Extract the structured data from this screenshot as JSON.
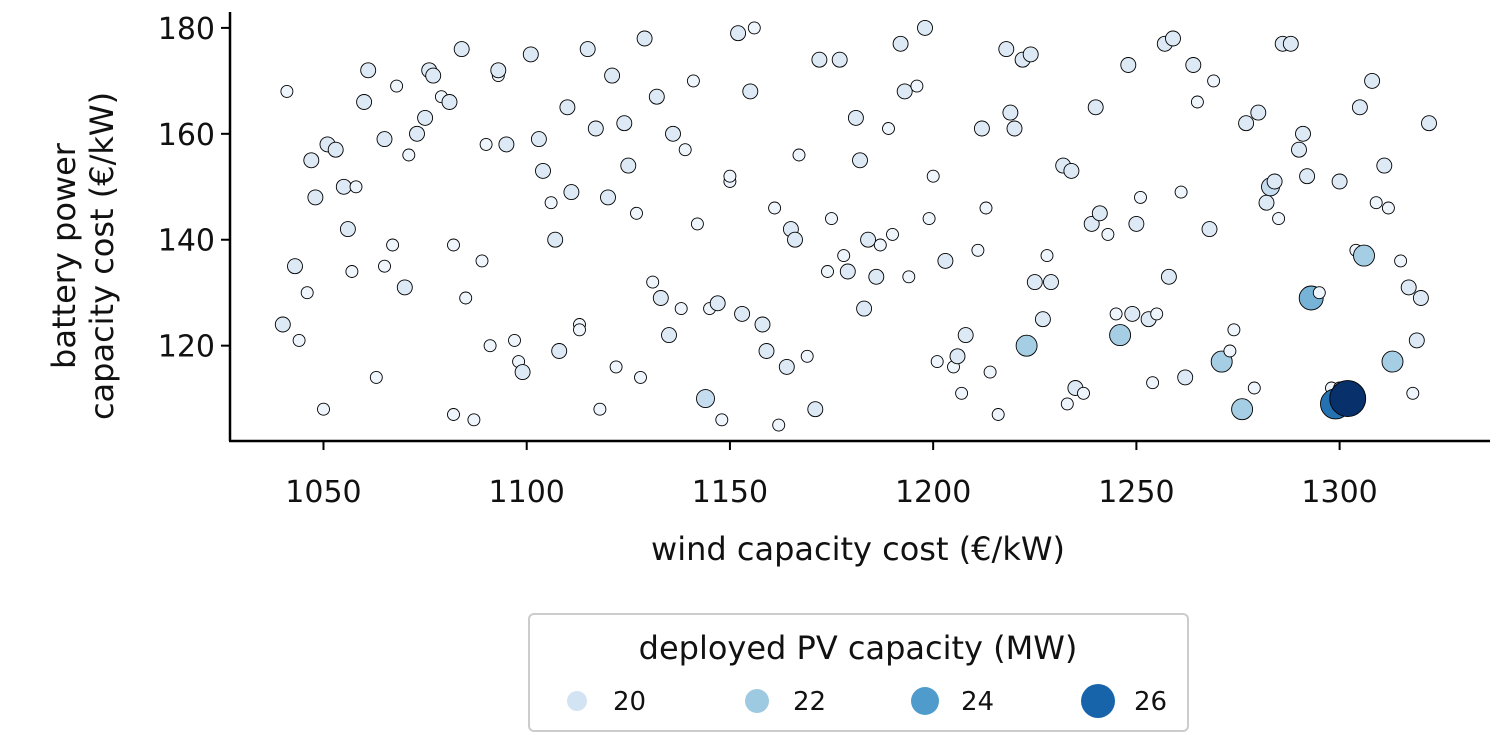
{
  "chart_data": {
    "type": "scatter",
    "xlabel": "wind capacity cost (€/kW)",
    "ylabel": "battery power\ncapacity cost (€/kW)",
    "xlim": [
      1027,
      1337
    ],
    "ylim": [
      102,
      183
    ],
    "xticks": [
      1050,
      1100,
      1150,
      1200,
      1250,
      1300
    ],
    "yticks": [
      120,
      140,
      160,
      180
    ],
    "grid": false,
    "legend": {
      "title": "deployed PV capacity (MW)",
      "placement": "bottom-center",
      "entries": [
        {
          "label": "20",
          "value": 20,
          "color": "#d2e3f3"
        },
        {
          "label": "22",
          "value": 22,
          "color": "#9ecae1"
        },
        {
          "label": "24",
          "value": 24,
          "color": "#4f9bcb"
        },
        {
          "label": "26",
          "value": 26,
          "color": "#1764ab"
        }
      ]
    },
    "color_scale": {
      "min_value": 19,
      "max_value": 27,
      "colors": [
        "#eef5fc",
        "#d2e3f3",
        "#9ecae1",
        "#4f9bcb",
        "#1764ab",
        "#08306b"
      ]
    },
    "marker_edge_color": "#000000",
    "points": [
      [
        1041,
        168,
        19
      ],
      [
        1040,
        124,
        20
      ],
      [
        1043,
        135,
        20
      ],
      [
        1044,
        121,
        19
      ],
      [
        1046,
        130,
        19
      ],
      [
        1047,
        155,
        20
      ],
      [
        1048,
        148,
        20
      ],
      [
        1050,
        108,
        19
      ],
      [
        1051,
        158,
        20
      ],
      [
        1053,
        157,
        20
      ],
      [
        1055,
        150,
        20
      ],
      [
        1056,
        142,
        20
      ],
      [
        1057,
        134,
        19
      ],
      [
        1058,
        150,
        19
      ],
      [
        1060,
        166,
        20
      ],
      [
        1061,
        172,
        20
      ],
      [
        1063,
        114,
        19
      ],
      [
        1065,
        135,
        19
      ],
      [
        1065,
        159,
        20
      ],
      [
        1067,
        139,
        19
      ],
      [
        1068,
        169,
        19
      ],
      [
        1070,
        131,
        20
      ],
      [
        1071,
        156,
        19
      ],
      [
        1073,
        160,
        20
      ],
      [
        1075,
        163,
        20
      ],
      [
        1076,
        172,
        20
      ],
      [
        1077,
        171,
        20
      ],
      [
        1079,
        167,
        19
      ],
      [
        1081,
        166,
        20
      ],
      [
        1082,
        139,
        19
      ],
      [
        1082,
        107,
        19
      ],
      [
        1084,
        176,
        20
      ],
      [
        1085,
        129,
        19
      ],
      [
        1087,
        106,
        19
      ],
      [
        1089,
        136,
        19
      ],
      [
        1090,
        158,
        19
      ],
      [
        1091,
        120,
        19
      ],
      [
        1093,
        171,
        19
      ],
      [
        1093,
        172,
        20
      ],
      [
        1095,
        158,
        20
      ],
      [
        1097,
        121,
        19
      ],
      [
        1098,
        117,
        19
      ],
      [
        1099,
        115,
        20
      ],
      [
        1101,
        175,
        20
      ],
      [
        1103,
        159,
        20
      ],
      [
        1104,
        153,
        20
      ],
      [
        1106,
        147,
        19
      ],
      [
        1107,
        140,
        20
      ],
      [
        1108,
        119,
        20
      ],
      [
        1110,
        165,
        20
      ],
      [
        1111,
        149,
        20
      ],
      [
        1113,
        124,
        19
      ],
      [
        1113,
        123,
        19
      ],
      [
        1115,
        176,
        20
      ],
      [
        1117,
        161,
        20
      ],
      [
        1118,
        108,
        19
      ],
      [
        1120,
        148,
        20
      ],
      [
        1121,
        171,
        20
      ],
      [
        1122,
        116,
        19
      ],
      [
        1124,
        162,
        20
      ],
      [
        1125,
        154,
        20
      ],
      [
        1127,
        145,
        19
      ],
      [
        1128,
        114,
        19
      ],
      [
        1129,
        178,
        20
      ],
      [
        1131,
        132,
        19
      ],
      [
        1132,
        167,
        20
      ],
      [
        1133,
        129,
        20
      ],
      [
        1135,
        122,
        20
      ],
      [
        1136,
        160,
        20
      ],
      [
        1138,
        127,
        19
      ],
      [
        1139,
        157,
        19
      ],
      [
        1141,
        170,
        19
      ],
      [
        1142,
        143,
        19
      ],
      [
        1144,
        110,
        21
      ],
      [
        1145,
        127,
        19
      ],
      [
        1147,
        128,
        20
      ],
      [
        1148,
        106,
        19
      ],
      [
        1150,
        151,
        19
      ],
      [
        1150,
        152,
        19
      ],
      [
        1152,
        179,
        20
      ],
      [
        1153,
        126,
        20
      ],
      [
        1155,
        168,
        20
      ],
      [
        1156,
        180,
        19
      ],
      [
        1158,
        124,
        20
      ],
      [
        1159,
        119,
        20
      ],
      [
        1161,
        146,
        19
      ],
      [
        1162,
        105,
        19
      ],
      [
        1164,
        116,
        20
      ],
      [
        1165,
        142,
        20
      ],
      [
        1166,
        140,
        20
      ],
      [
        1167,
        156,
        19
      ],
      [
        1169,
        118,
        19
      ],
      [
        1171,
        108,
        20
      ],
      [
        1172,
        174,
        20
      ],
      [
        1174,
        134,
        19
      ],
      [
        1175,
        144,
        19
      ],
      [
        1177,
        174,
        20
      ],
      [
        1178,
        137,
        19
      ],
      [
        1179,
        134,
        20
      ],
      [
        1181,
        163,
        20
      ],
      [
        1182,
        155,
        20
      ],
      [
        1183,
        127,
        20
      ],
      [
        1184,
        140,
        20
      ],
      [
        1186,
        133,
        20
      ],
      [
        1187,
        139,
        19
      ],
      [
        1189,
        161,
        19
      ],
      [
        1190,
        141,
        19
      ],
      [
        1192,
        177,
        20
      ],
      [
        1193,
        168,
        20
      ],
      [
        1194,
        133,
        19
      ],
      [
        1196,
        169,
        19
      ],
      [
        1198,
        180,
        20
      ],
      [
        1199,
        144,
        19
      ],
      [
        1200,
        152,
        19
      ],
      [
        1201,
        117,
        19
      ],
      [
        1203,
        136,
        20
      ],
      [
        1205,
        116,
        19
      ],
      [
        1206,
        118,
        20
      ],
      [
        1207,
        111,
        19
      ],
      [
        1208,
        122,
        20
      ],
      [
        1211,
        138,
        19
      ],
      [
        1212,
        161,
        20
      ],
      [
        1213,
        146,
        19
      ],
      [
        1214,
        115,
        19
      ],
      [
        1216,
        107,
        19
      ],
      [
        1218,
        176,
        20
      ],
      [
        1219,
        164,
        20
      ],
      [
        1220,
        161,
        20
      ],
      [
        1222,
        174,
        20
      ],
      [
        1223,
        120,
        22
      ],
      [
        1224,
        175,
        20
      ],
      [
        1225,
        132,
        20
      ],
      [
        1227,
        125,
        20
      ],
      [
        1228,
        137,
        19
      ],
      [
        1229,
        132,
        20
      ],
      [
        1232,
        154,
        20
      ],
      [
        1233,
        109,
        19
      ],
      [
        1234,
        153,
        20
      ],
      [
        1235,
        112,
        20
      ],
      [
        1237,
        111,
        19
      ],
      [
        1239,
        143,
        20
      ],
      [
        1240,
        165,
        20
      ],
      [
        1241,
        145,
        20
      ],
      [
        1243,
        141,
        19
      ],
      [
        1245,
        126,
        19
      ],
      [
        1246,
        122,
        22
      ],
      [
        1248,
        173,
        20
      ],
      [
        1249,
        126,
        20
      ],
      [
        1250,
        143,
        20
      ],
      [
        1251,
        148,
        19
      ],
      [
        1253,
        125,
        20
      ],
      [
        1254,
        113,
        19
      ],
      [
        1255,
        126,
        19
      ],
      [
        1257,
        177,
        20
      ],
      [
        1258,
        133,
        20
      ],
      [
        1259,
        178,
        20
      ],
      [
        1261,
        149,
        19
      ],
      [
        1262,
        114,
        20
      ],
      [
        1264,
        173,
        20
      ],
      [
        1265,
        166,
        19
      ],
      [
        1268,
        142,
        20
      ],
      [
        1269,
        170,
        19
      ],
      [
        1271,
        117,
        22
      ],
      [
        1273,
        119,
        19
      ],
      [
        1274,
        123,
        19
      ],
      [
        1276,
        108,
        22
      ],
      [
        1277,
        162,
        20
      ],
      [
        1279,
        112,
        19
      ],
      [
        1280,
        164,
        20
      ],
      [
        1282,
        147,
        20
      ],
      [
        1283,
        150,
        21
      ],
      [
        1284,
        151,
        20
      ],
      [
        1285,
        144,
        19
      ],
      [
        1286,
        177,
        20
      ],
      [
        1288,
        177,
        20
      ],
      [
        1290,
        157,
        20
      ],
      [
        1291,
        160,
        20
      ],
      [
        1292,
        152,
        20
      ],
      [
        1293,
        129,
        23
      ],
      [
        1295,
        130,
        19
      ],
      [
        1298,
        112,
        19
      ],
      [
        1299,
        109,
        25
      ],
      [
        1300,
        112,
        19
      ],
      [
        1300,
        151,
        20
      ],
      [
        1302,
        110,
        27
      ],
      [
        1304,
        138,
        19
      ],
      [
        1305,
        165,
        20
      ],
      [
        1306,
        137,
        22
      ],
      [
        1308,
        170,
        20
      ],
      [
        1309,
        147,
        19
      ],
      [
        1311,
        154,
        20
      ],
      [
        1312,
        146,
        19
      ],
      [
        1313,
        117,
        22
      ],
      [
        1315,
        136,
        19
      ],
      [
        1317,
        131,
        20
      ],
      [
        1318,
        111,
        19
      ],
      [
        1319,
        121,
        20
      ],
      [
        1320,
        129,
        20
      ],
      [
        1322,
        162,
        20
      ]
    ]
  }
}
